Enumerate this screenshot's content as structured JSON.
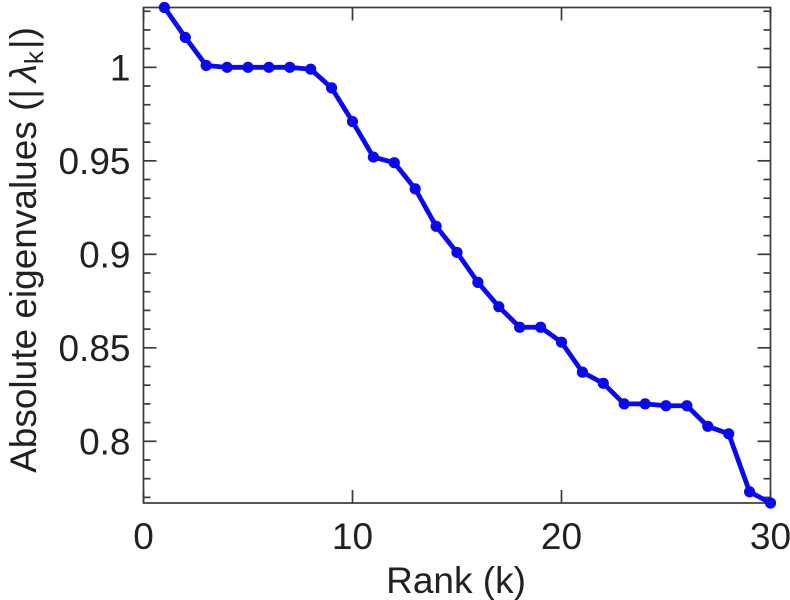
{
  "figure": {
    "background": "#ffffff"
  },
  "chart_data": {
    "type": "line",
    "title": "",
    "xlabel": "Rank (k)",
    "ylabel_parts": {
      "prefix": "Absolute eigenvalues (|",
      "symbol": "λ",
      "subscript": "k",
      "suffix": "|)"
    },
    "x": [
      1,
      2,
      3,
      4,
      5,
      6,
      7,
      8,
      9,
      10,
      11,
      12,
      13,
      14,
      15,
      16,
      17,
      18,
      19,
      20,
      21,
      22,
      23,
      24,
      25,
      26,
      27,
      28,
      29,
      30
    ],
    "y": [
      1.032,
      1.016,
      1.001,
      1.0,
      1.0,
      1.0,
      1.0,
      0.999,
      0.989,
      0.971,
      0.952,
      0.949,
      0.935,
      0.915,
      0.901,
      0.885,
      0.872,
      0.861,
      0.861,
      0.853,
      0.837,
      0.831,
      0.82,
      0.82,
      0.819,
      0.819,
      0.808,
      0.804,
      0.773,
      0.767
    ],
    "xlim": [
      0,
      30
    ],
    "ylim": [
      0.767,
      1.032
    ],
    "x_ticks": {
      "values": [
        0,
        10,
        20,
        30
      ],
      "labels": [
        "0",
        "10",
        "20",
        "30"
      ]
    },
    "y_ticks": {
      "values": [
        0.8,
        0.85,
        0.9,
        0.95,
        1.0
      ],
      "labels": [
        "0.8",
        "0.85",
        "0.9",
        "0.95",
        "1"
      ]
    },
    "y_minor_step": 0.01,
    "grid": false,
    "legend": null,
    "line_color": "#0909F1",
    "axis_color": "#3a3a3a",
    "tick_label_color": "#212121",
    "marker": "circle"
  }
}
